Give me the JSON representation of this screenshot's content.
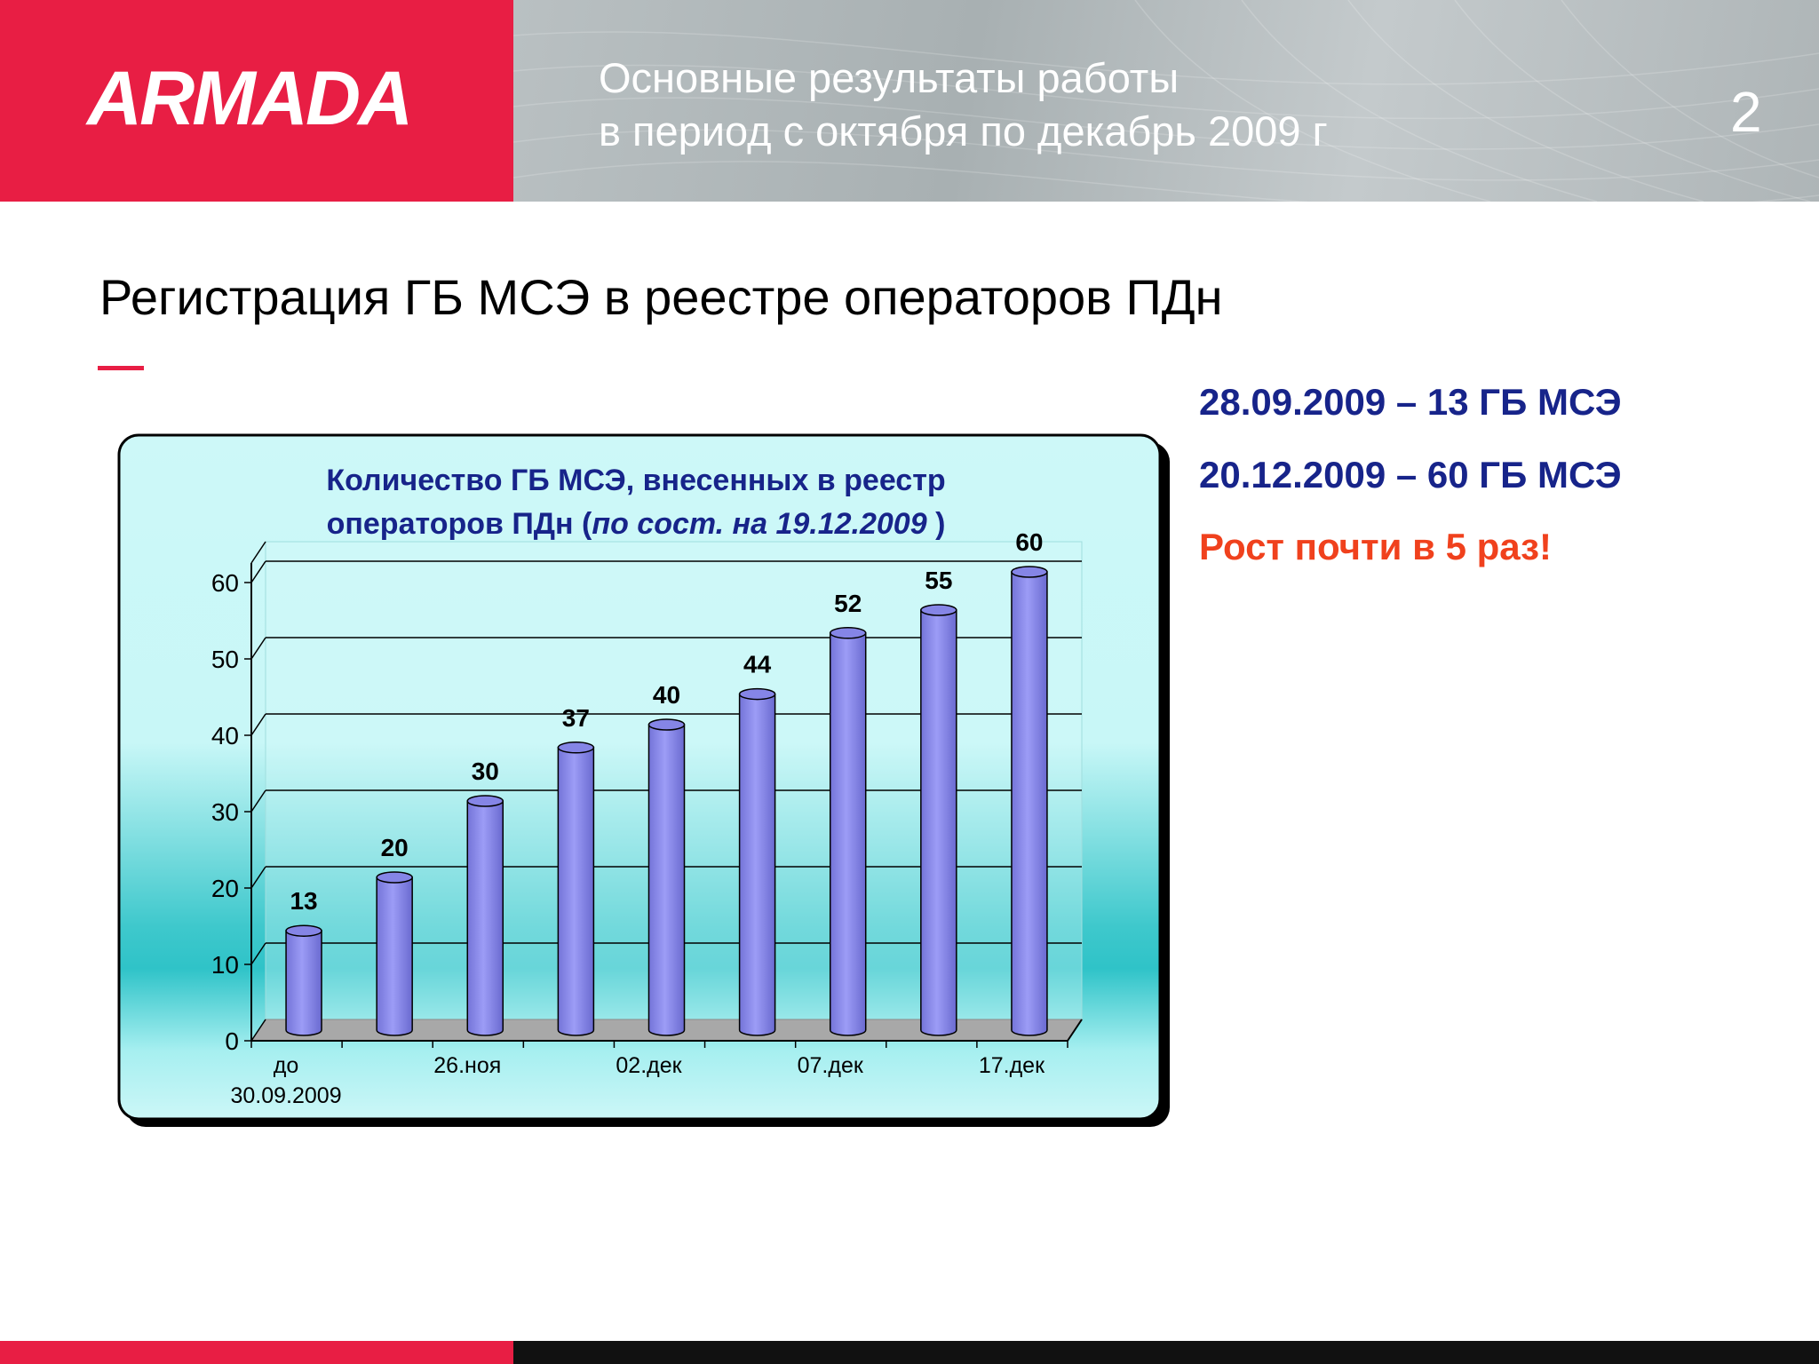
{
  "header": {
    "logo": "ARMADA",
    "title_line1": "Основные результаты работы",
    "title_line2": "в период с октября по декабрь 2009 г",
    "page_number": "2"
  },
  "slide": {
    "title": "Регистрация ГБ МСЭ в реестре операторов ПДн"
  },
  "info": {
    "line1": "28.09.2009 – 13 ГБ МСЭ",
    "line2": "20.12.2009 – 60 ГБ МСЭ",
    "line3": "Рост почти в 5 раз!"
  },
  "colors": {
    "brand_red": "#e81e44",
    "title_blue": "#17248a",
    "highlight_orange": "#f0411d",
    "bar_fill": "#8e8ef0"
  },
  "chart_data": {
    "type": "bar",
    "title_line1": "Количество ГБ МСЭ, внесенных в реестр",
    "title_line2_prefix": "операторов ПДн (",
    "title_line2_italic": "по сост. на 19.12.2009",
    "title_line2_suffix": " )",
    "categories": [
      "до 30.09.2009",
      "",
      "26.ноя",
      "",
      "02.дек",
      "",
      "07.дек",
      "",
      "17.дек"
    ],
    "category_labels_shown": [
      "до",
      "30.09.2009",
      "26.ноя",
      "02.дек",
      "07.дек",
      "17.дек"
    ],
    "values": [
      13,
      20,
      30,
      37,
      40,
      44,
      52,
      55,
      60
    ],
    "ylim": [
      0,
      60
    ],
    "yticks": [
      0,
      10,
      20,
      30,
      40,
      50,
      60
    ],
    "grid": true,
    "legend": "none"
  }
}
